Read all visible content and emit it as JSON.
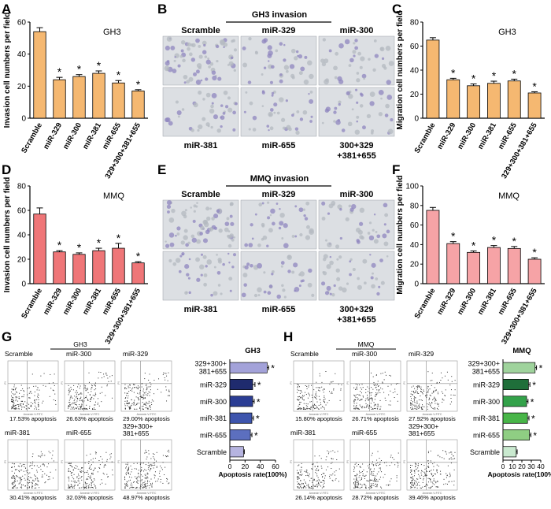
{
  "panel_letters": [
    "A",
    "B",
    "C",
    "D",
    "E",
    "F",
    "G",
    "H"
  ],
  "significance_mark": "*",
  "colors": {
    "orange": "#f5b871",
    "red": "#ef7678",
    "pink": "#f6a3a6",
    "micrograph_bg": "#dcdfe3",
    "micrograph_cell": "#8f85bf",
    "micrograph_pore": "#b4b9c0",
    "flow_dot": "#333333",
    "flow_line": "#888888"
  },
  "panel_B": {
    "title": "GH3 invasion",
    "top_labels": [
      "Scramble",
      "miR-329",
      "miR-300"
    ],
    "bottom_labels": [
      "miR-381",
      "miR-655",
      "300+329",
      "+381+655"
    ]
  },
  "panel_E": {
    "title": "MMQ invasion",
    "top_labels": [
      "Scramble",
      "miR-329",
      "miR-300"
    ],
    "bottom_labels": [
      "miR-381",
      "miR-655",
      "300+329",
      "+381+655"
    ]
  },
  "panel_G": {
    "title": "GH3",
    "labels_top": [
      "Scramble",
      "miR-300",
      "miR-329"
    ],
    "labels_bottom": [
      "miR-381",
      "miR-655",
      "329+300+",
      "381+655"
    ],
    "apoptosis_text": [
      "17.53% apoptosis",
      "26.63% apoptosis",
      "29.00% apoptosis",
      "30.41% apoptosis",
      "32.03% apoptosis",
      "48.97% apoptosis"
    ],
    "axis_text": [
      "Annexin V-FITC",
      "PI"
    ],
    "density": [
      0.35,
      0.5,
      0.55,
      0.55,
      0.6,
      0.85
    ]
  },
  "panel_H": {
    "title": "MMQ",
    "labels_top": [
      "Scramble",
      "miR-300",
      "miR-329"
    ],
    "labels_bottom": [
      "miR-381",
      "miR-655",
      "329+300+",
      "381+655"
    ],
    "apoptosis_text": [
      "15.80% apoptosis",
      "26.71% apoptosis",
      "27.92% apoptosis",
      "26.14% apoptosis",
      "28.72% apoptosis",
      "39.46% apoptosis"
    ],
    "axis_text": [
      "Annexin V-FITC",
      "PI"
    ],
    "density": [
      0.35,
      0.5,
      0.52,
      0.5,
      0.55,
      0.75
    ]
  },
  "chart_data": [
    {
      "panel": "A",
      "type": "bar",
      "title": "GH3",
      "ylabel": "Invasion cell numbers per field",
      "ylim": [
        0,
        60
      ],
      "yticks": [
        "0",
        "20",
        "40",
        "60"
      ],
      "categories": [
        "Scramble",
        "miR-329",
        "miR-300",
        "miR-381",
        "miR-655",
        "329+300+381+655"
      ],
      "values": [
        54,
        24,
        26,
        28,
        22,
        17
      ],
      "errors": [
        2.5,
        1.5,
        1.2,
        1.5,
        1.5,
        0.8
      ],
      "significant": [
        false,
        true,
        true,
        true,
        true,
        true
      ],
      "color": "#f5b871"
    },
    {
      "panel": "C",
      "type": "bar",
      "title": "GH3",
      "ylabel": "Migration cell numbers per field",
      "ylim": [
        0,
        80
      ],
      "yticks": [
        "0",
        "20",
        "40",
        "60",
        "80"
      ],
      "categories": [
        "Scramble",
        "miR-329",
        "miR-300",
        "miR-381",
        "miR-655",
        "329+300+381+655"
      ],
      "values": [
        65,
        32,
        27,
        29,
        31,
        21
      ],
      "errors": [
        2,
        1.2,
        1.5,
        1.8,
        1.5,
        1
      ],
      "significant": [
        false,
        true,
        true,
        true,
        true,
        true
      ],
      "color": "#f5b871"
    },
    {
      "panel": "D",
      "type": "bar",
      "title": "MMQ",
      "ylabel": "Invasion cell numbers per field",
      "ylim": [
        0,
        80
      ],
      "yticks": [
        "0",
        "20",
        "40",
        "60",
        "80"
      ],
      "categories": [
        "Scramble",
        "miR-329",
        "miR-300",
        "miR-381",
        "miR-655",
        "329+300+381+655"
      ],
      "values": [
        57,
        26,
        24,
        27,
        29,
        17
      ],
      "errors": [
        5,
        1,
        1.2,
        2,
        4,
        1
      ],
      "significant": [
        false,
        true,
        true,
        true,
        true,
        true
      ],
      "color": "#ef7678"
    },
    {
      "panel": "F",
      "type": "bar",
      "title": "MMQ",
      "ylabel": "Migration cell numbers per field",
      "ylim": [
        0,
        100
      ],
      "yticks": [
        "0",
        "20",
        "40",
        "60",
        "80",
        "100"
      ],
      "categories": [
        "Scramble",
        "miR-329",
        "miR-300",
        "miR-381",
        "miR-655",
        "329+300+381+655"
      ],
      "values": [
        75,
        41,
        32,
        37,
        36,
        25
      ],
      "errors": [
        3,
        2,
        1.5,
        2,
        2,
        1.5
      ],
      "significant": [
        false,
        true,
        true,
        true,
        true,
        true
      ],
      "color": "#f6a3a6"
    },
    {
      "panel": "G",
      "type": "bar",
      "orientation": "horizontal",
      "title": "GH3",
      "xlabel": "Apoptosis rate(100%)",
      "xlim": [
        0,
        60
      ],
      "xticks": [
        "0",
        "20",
        "40",
        "60"
      ],
      "categories": [
        "329+300+381+655",
        "miR-329",
        "miR-300",
        "miR-381",
        "miR-655",
        "Scramble"
      ],
      "category_lines": [
        [
          "329+300+",
          "381+655"
        ],
        [
          "miR-329"
        ],
        [
          "miR-300"
        ],
        [
          "miR-381"
        ],
        [
          "miR-655"
        ],
        [
          "Scramble"
        ]
      ],
      "values": [
        49,
        30,
        30,
        29,
        27,
        18
      ],
      "errors": [
        2,
        3,
        2,
        2,
        2,
        1
      ],
      "significant": [
        true,
        true,
        true,
        true,
        true,
        false
      ],
      "colors": [
        "#a3a2d9",
        "#1f2b6e",
        "#2b3d94",
        "#3e55ad",
        "#5c6fbf",
        "#b6b4e0"
      ]
    },
    {
      "panel": "H",
      "type": "bar",
      "orientation": "horizontal",
      "title": "MMQ",
      "xlabel": "Apoptosis rate(100%)",
      "xlim": [
        0,
        40
      ],
      "xticks": [
        "0",
        "10",
        "20",
        "30",
        "40"
      ],
      "categories": [
        "329+300+381+655",
        "miR-329",
        "miR-300",
        "miR-381",
        "miR-655",
        "Scramble"
      ],
      "category_lines": [
        [
          "329+300+",
          "381+655"
        ],
        [
          "miR-329"
        ],
        [
          "miR-300"
        ],
        [
          "miR-381"
        ],
        [
          "miR-655"
        ],
        [
          "Scramble"
        ]
      ],
      "values": [
        34,
        27,
        25,
        26,
        28,
        14
      ],
      "errors": [
        1.5,
        1.5,
        1.5,
        1.5,
        1.5,
        1
      ],
      "significant": [
        true,
        true,
        true,
        true,
        true,
        false
      ],
      "colors": [
        "#9fd39c",
        "#1f6f3a",
        "#33a24a",
        "#48b548",
        "#8fce83",
        "#c9e9cf"
      ]
    }
  ]
}
